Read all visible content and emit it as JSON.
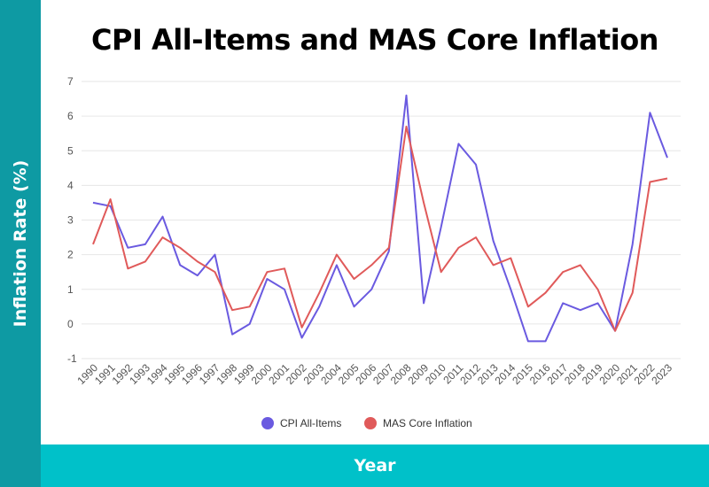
{
  "chart_data": {
    "type": "line",
    "title": "CPI All-Items and MAS Core Inflation",
    "xlabel": "Year",
    "ylabel": "Inflation Rate (%)",
    "ylim": [
      -1,
      7
    ],
    "yticks": [
      -1,
      0,
      1,
      2,
      3,
      4,
      5,
      6,
      7
    ],
    "grid": true,
    "legend": "bottom",
    "categories": [
      "1990",
      "1991",
      "1992",
      "1993",
      "1994",
      "1995",
      "1996",
      "1997",
      "1998",
      "1999",
      "2000",
      "2001",
      "2002",
      "2003",
      "2004",
      "2005",
      "2006",
      "2007",
      "2008",
      "2009",
      "2010",
      "2011",
      "2012",
      "2013",
      "2014",
      "2015",
      "2016",
      "2017",
      "2018",
      "2019",
      "2020",
      "2021",
      "2022",
      "2023"
    ],
    "series": [
      {
        "name": "CPI All-Items",
        "color": "#6a5ae0",
        "values": [
          3.5,
          3.4,
          2.2,
          2.3,
          3.1,
          1.7,
          1.4,
          2.0,
          -0.3,
          0.0,
          1.3,
          1.0,
          -0.4,
          0.5,
          1.7,
          0.5,
          1.0,
          2.1,
          6.6,
          0.6,
          2.8,
          5.2,
          4.6,
          2.4,
          1.0,
          -0.5,
          -0.5,
          0.6,
          0.4,
          0.6,
          -0.2,
          2.3,
          6.1,
          4.8
        ]
      },
      {
        "name": "MAS Core Inflation",
        "color": "#e05a5a",
        "values": [
          2.3,
          3.6,
          1.6,
          1.8,
          2.5,
          2.2,
          1.8,
          1.5,
          0.4,
          0.5,
          1.5,
          1.6,
          -0.1,
          0.9,
          2.0,
          1.3,
          1.7,
          2.2,
          5.7,
          3.5,
          1.5,
          2.2,
          2.5,
          1.7,
          1.9,
          0.5,
          0.9,
          1.5,
          1.7,
          1.0,
          -0.2,
          0.9,
          4.1,
          4.2
        ]
      }
    ]
  }
}
